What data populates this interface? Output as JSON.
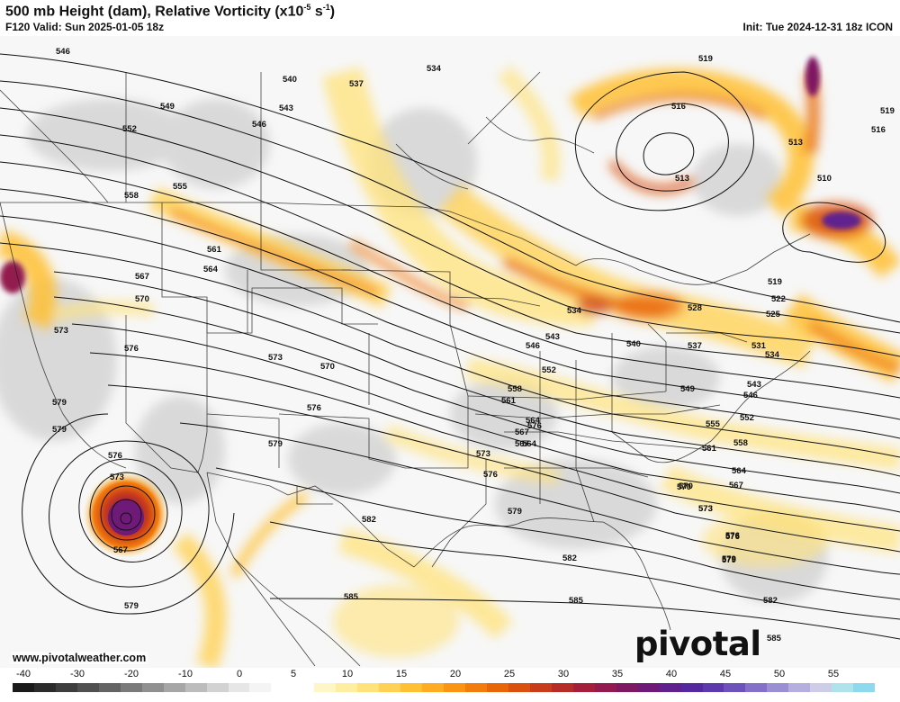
{
  "header": {
    "title": "500 mb Height (dam), Relative Vorticity (x10",
    "title_exp": "-5",
    "title_unit": " s",
    "title_unit_exp": "-1",
    "title_close": ")",
    "valid": "F120 Valid: Sun 2025-01-05 18z",
    "init": "Init: Tue 2024-12-31 18z ICON"
  },
  "footer": {
    "website": "www.pivotalweather.com",
    "brand": "pivotal weather"
  },
  "colorbar": {
    "ticks": [
      "-40",
      "-30",
      "-20",
      "-10",
      "0",
      "5",
      "10",
      "15",
      "20",
      "25",
      "30",
      "35",
      "40",
      "45",
      "50",
      "55"
    ],
    "colors": [
      "#1a1a1a",
      "#2b2b2b",
      "#3d3d3d",
      "#505050",
      "#646464",
      "#7a7a7a",
      "#909090",
      "#a6a6a6",
      "#bcbcbc",
      "#d2d2d2",
      "#e6e6e6",
      "#f4f4f4",
      "#ffffff",
      "#ffffff",
      "#fff6c8",
      "#ffeea0",
      "#ffe27a",
      "#ffd255",
      "#ffc033",
      "#ffac22",
      "#fb9412",
      "#f27c0c",
      "#e86508",
      "#da500f",
      "#c93c1a",
      "#b52c28",
      "#a41f3a",
      "#921a4e",
      "#7f1862",
      "#6f1a78",
      "#60208e",
      "#56289f",
      "#5c3aad",
      "#6e52bb",
      "#8470c8",
      "#9b8fd3",
      "#b4afdf",
      "#cdcde9",
      "#aee2ec",
      "#8fd9ee"
    ]
  },
  "contour_labels": [
    "546",
    "549",
    "552",
    "555",
    "558",
    "561",
    "564",
    "567",
    "570",
    "573",
    "576",
    "579",
    "540",
    "537",
    "543",
    "546",
    "534",
    "519",
    "516",
    "513",
    "513",
    "510",
    "519",
    "516",
    "519",
    "522",
    "525",
    "528",
    "531",
    "534",
    "534",
    "540",
    "543",
    "546",
    "537",
    "549",
    "543",
    "546",
    "552",
    "552",
    "555",
    "558",
    "558",
    "561",
    "561",
    "564",
    "564",
    "567",
    "567",
    "570",
    "570",
    "573",
    "573",
    "573",
    "576",
    "576",
    "576",
    "576",
    "579",
    "579",
    "579",
    "579",
    "582",
    "582",
    "582",
    "585",
    "585",
    "585",
    "573",
    "576",
    "579",
    "567",
    "567",
    "570",
    "564",
    "573",
    "576",
    "579"
  ],
  "colors": {
    "vort_low": "#ffe27a",
    "vort_mid": "#f27c0c",
    "vort_high": "#c93c1a",
    "vort_max": "#6f1a78",
    "negative": "#c8c8c8"
  }
}
